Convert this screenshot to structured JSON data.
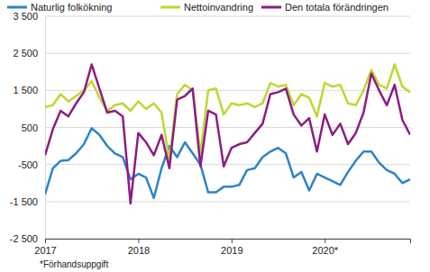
{
  "chart_data": {
    "type": "line",
    "categories": [
      "2017",
      null,
      null,
      null,
      null,
      null,
      null,
      null,
      null,
      null,
      null,
      null,
      "2018",
      null,
      null,
      null,
      null,
      null,
      null,
      null,
      null,
      null,
      null,
      null,
      "2019",
      null,
      null,
      null,
      null,
      null,
      null,
      null,
      null,
      null,
      null,
      null,
      "2020*",
      null,
      null,
      null,
      null,
      null,
      null,
      null,
      null,
      null,
      null,
      null
    ],
    "series": [
      {
        "name": "Naturlig folkökning",
        "color": "#2c84c6",
        "values": [
          -1300,
          -600,
          -400,
          -380,
          -200,
          50,
          480,
          300,
          0,
          -200,
          -300,
          -900,
          -750,
          -850,
          -1400,
          -600,
          0,
          -300,
          100,
          -200,
          -500,
          -1250,
          -1250,
          -1100,
          -1100,
          -1050,
          -650,
          -600,
          -300,
          -150,
          -50,
          -200,
          -850,
          -700,
          -1200,
          -750,
          -850,
          -950,
          -1050,
          -700,
          -400,
          -150,
          -150,
          -450,
          -650,
          -750,
          -1000,
          -900
        ]
      },
      {
        "name": "Nettoinvandring",
        "color": "#bfd730",
        "values": [
          1050,
          1100,
          1400,
          1200,
          1350,
          1500,
          1750,
          1300,
          950,
          1100,
          1150,
          950,
          1200,
          1000,
          1150,
          900,
          -400,
          1400,
          1650,
          1500,
          -200,
          1500,
          1550,
          850,
          1150,
          1100,
          1150,
          1050,
          1150,
          1700,
          1600,
          1650,
          1100,
          1400,
          1300,
          800,
          1700,
          1600,
          1650,
          1150,
          1100,
          1500,
          2050,
          1650,
          1550,
          2200,
          1600,
          1450
        ]
      },
      {
        "name": "Den totala förändringen",
        "color": "#8c1d82",
        "values": [
          -250,
          450,
          950,
          800,
          1150,
          1450,
          2200,
          1550,
          900,
          950,
          800,
          -1550,
          350,
          100,
          -250,
          300,
          -600,
          1250,
          1350,
          1550,
          -550,
          950,
          850,
          -550,
          -50,
          50,
          100,
          350,
          600,
          1400,
          1450,
          1550,
          850,
          550,
          750,
          -150,
          850,
          300,
          600,
          50,
          350,
          900,
          1950,
          1500,
          1100,
          1650,
          700,
          300
        ]
      }
    ],
    "ylim": [
      -2500,
      3500
    ],
    "yticks": [
      {
        "value": -2500,
        "label": "-2 500"
      },
      {
        "value": -1500,
        "label": "-1 500"
      },
      -500,
      500,
      {
        "value": 1500,
        "label": "1 500"
      },
      {
        "value": 2500,
        "label": "2 500"
      },
      {
        "value": 3500,
        "label": "3 500"
      }
    ],
    "grid": true,
    "legend": "top",
    "annotations": [
      "*Förhandsuppgift"
    ]
  }
}
